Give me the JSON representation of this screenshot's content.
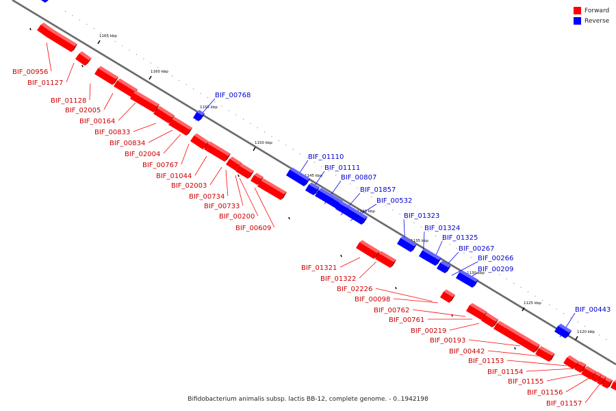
{
  "legend": {
    "forward": {
      "label": "Forward",
      "color": "#ff0000"
    },
    "reverse": {
      "label": "Reverse",
      "color": "#0000ff"
    }
  },
  "caption": "Bifidobacterium animalis subsp. lactis BB-12, complete genome. - 0..1942198",
  "scale_ticks": [
    "1165 kbp",
    "1160 kbp",
    "1155 kbp",
    "1150 kbp",
    "1145 kbp",
    "1140 kbp",
    "1135 kbp",
    "1130 kbp",
    "1125 kbp",
    "1120 kbp"
  ],
  "forward_genes": [
    "BIF_00956",
    "BIF_01127",
    "BIF_01128",
    "BIF_02005",
    "BIF_00164",
    "BIF_00833",
    "BIF_00834",
    "BIF_02004",
    "BIF_00767",
    "BIF_01044",
    "BIF_02003",
    "BIF_00734",
    "BIF_00733",
    "BIF_00200",
    "BIF_00609",
    "BIF_01321",
    "BIF_01322",
    "BIF_02226",
    "BIF_00098",
    "BIF_00762",
    "BIF_00761",
    "BIF_00219",
    "BIF_00193",
    "BIF_00442",
    "BIF_01153",
    "BIF_01154",
    "BIF_01155",
    "BIF_01156",
    "BIF_01157"
  ],
  "reverse_genes": [
    "BIF_00768",
    "BIF_01110",
    "BIF_01111",
    "BIF_00807",
    "BIF_01857",
    "BIF_00532",
    "BIF_01323",
    "BIF_01324",
    "BIF_01325",
    "BIF_00267",
    "BIF_00266",
    "BIF_00209",
    "BIF_00443"
  ]
}
